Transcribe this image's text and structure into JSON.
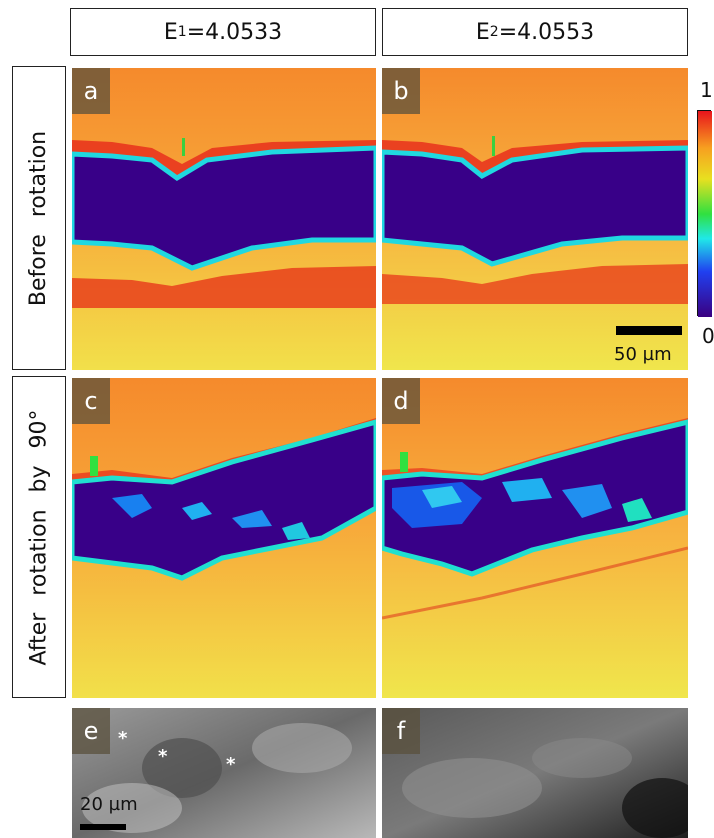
{
  "columns": [
    {
      "label": "E",
      "sub": "1",
      "value": "=4.0533"
    },
    {
      "label": "E",
      "sub": "2",
      "value": "=4.0553"
    }
  ],
  "rows": [
    {
      "label": "Before rotation"
    },
    {
      "label": "After rotation by 90°"
    }
  ],
  "panels": [
    "a",
    "b",
    "c",
    "d",
    "e",
    "f"
  ],
  "colorbar": {
    "max": "1",
    "min": "0"
  },
  "scalebar_map": "50 µm",
  "scalebar_gray": "20 µm",
  "markers": [
    "*",
    "*",
    "*"
  ]
}
